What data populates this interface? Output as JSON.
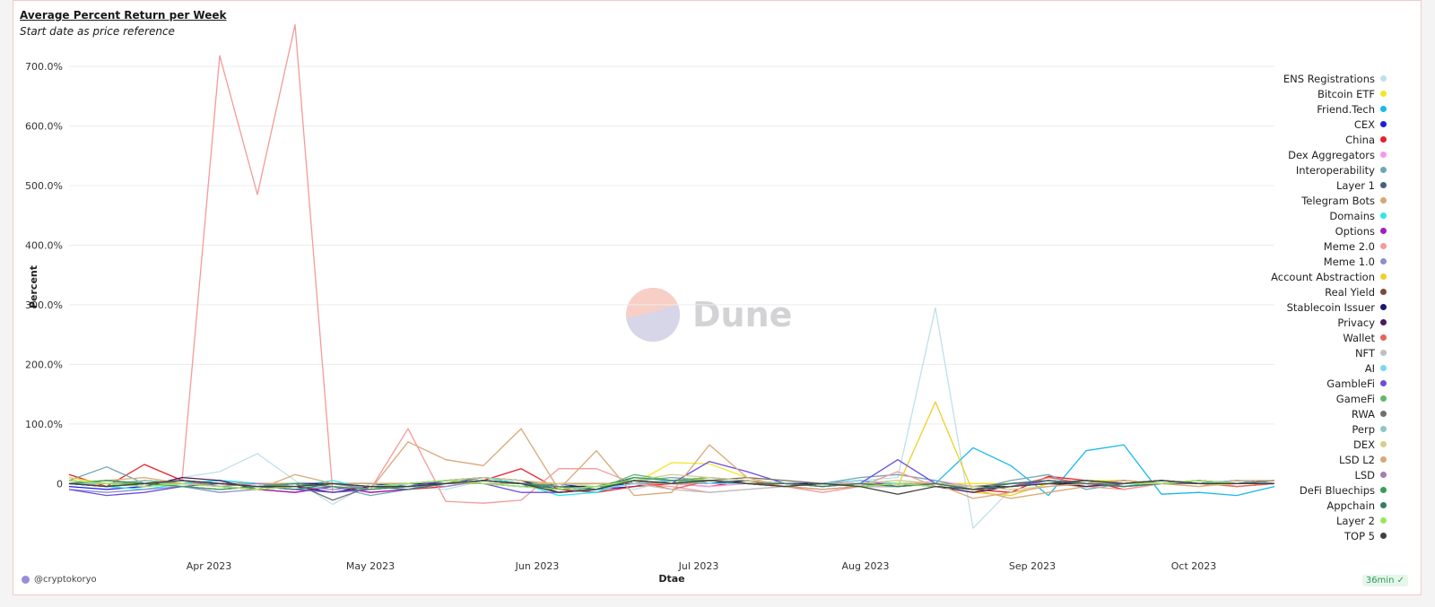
{
  "header": {
    "title": "Average Percent Return per Week",
    "subtitle": "Start date as price reference"
  },
  "watermark": {
    "text": "Dune"
  },
  "footer": {
    "user": "@cryptokoryo",
    "badge": "36min"
  },
  "chart_data": {
    "type": "line",
    "title": "Average Percent Return per Week",
    "subtitle": "Start date as price reference",
    "xlabel": "Dtae",
    "ylabel": "Percent",
    "ylim": [
      -120,
      780
    ],
    "yticks": [
      0,
      100,
      200,
      300,
      400,
      500,
      600,
      700
    ],
    "ytick_labels": [
      "0",
      "100.0%",
      "200.0%",
      "300.0%",
      "400.0%",
      "500.0%",
      "600.0%",
      "700.0%"
    ],
    "x_dates": [
      "2023-03-06",
      "2023-03-13",
      "2023-03-20",
      "2023-03-27",
      "2023-04-03",
      "2023-04-10",
      "2023-04-17",
      "2023-04-24",
      "2023-05-01",
      "2023-05-08",
      "2023-05-15",
      "2023-05-22",
      "2023-05-29",
      "2023-06-05",
      "2023-06-12",
      "2023-06-19",
      "2023-06-26",
      "2023-07-03",
      "2023-07-10",
      "2023-07-17",
      "2023-07-24",
      "2023-07-31",
      "2023-08-07",
      "2023-08-14",
      "2023-08-21",
      "2023-08-28",
      "2023-09-04",
      "2023-09-11",
      "2023-09-18",
      "2023-09-25",
      "2023-10-02",
      "2023-10-09",
      "2023-10-16"
    ],
    "xticks": [
      {
        "label": "Apr 2023",
        "date": "2023-04-01"
      },
      {
        "label": "May 2023",
        "date": "2023-05-01"
      },
      {
        "label": "Jun 2023",
        "date": "2023-06-01"
      },
      {
        "label": "Jul 2023",
        "date": "2023-07-01"
      },
      {
        "label": "Aug 2023",
        "date": "2023-08-01"
      },
      {
        "label": "Sep 2023",
        "date": "2023-09-01"
      },
      {
        "label": "Oct 2023",
        "date": "2023-10-01"
      }
    ],
    "grid": true,
    "legend_position": "right",
    "series": [
      {
        "name": "ENS Registrations",
        "color": "#bfe0e8",
        "values": [
          5,
          0,
          -5,
          10,
          20,
          50,
          5,
          -35,
          0,
          -5,
          -10,
          5,
          0,
          -5,
          0,
          -10,
          5,
          10,
          0,
          -5,
          0,
          5,
          10,
          295,
          -75,
          -10,
          -5,
          0,
          5,
          0,
          -5,
          0,
          0
        ]
      },
      {
        "name": "Bitcoin ETF",
        "color": "#f5e52a",
        "values": [
          0,
          0,
          0,
          0,
          0,
          0,
          0,
          0,
          0,
          0,
          0,
          0,
          0,
          0,
          0,
          0,
          35,
          33,
          10,
          5,
          0,
          0,
          0,
          0,
          0,
          0,
          0,
          5,
          5,
          0,
          0,
          0,
          0
        ]
      },
      {
        "name": "Friend.Tech",
        "color": "#1ab8ec",
        "values": [
          0,
          0,
          0,
          0,
          0,
          0,
          0,
          0,
          0,
          0,
          0,
          0,
          0,
          0,
          0,
          0,
          0,
          0,
          0,
          0,
          0,
          0,
          0,
          0,
          60,
          30,
          -20,
          55,
          65,
          -18,
          -15,
          -20,
          -5
        ]
      },
      {
        "name": "CEX",
        "color": "#1a20e0",
        "values": [
          -5,
          -10,
          -5,
          0,
          5,
          0,
          -5,
          0,
          0,
          -5,
          5,
          0,
          -5,
          0,
          -10,
          -5,
          5,
          0,
          5,
          0,
          -5,
          0,
          -5,
          0,
          -10,
          -5,
          0,
          5,
          0,
          0,
          5,
          0,
          5
        ]
      },
      {
        "name": "China",
        "color": "#e8202a",
        "values": [
          15,
          -5,
          32,
          5,
          -5,
          -10,
          -15,
          -5,
          -15,
          -10,
          -5,
          5,
          25,
          -10,
          -15,
          -5,
          0,
          -5,
          5,
          -5,
          0,
          0,
          0,
          0,
          -10,
          -15,
          12,
          5,
          -10,
          0,
          5,
          -5,
          0
        ]
      },
      {
        "name": "Dex Aggregators",
        "color": "#f49ae6",
        "values": [
          0,
          -5,
          0,
          5,
          -5,
          -10,
          -5,
          0,
          -10,
          -5,
          0,
          5,
          0,
          -5,
          -5,
          5,
          0,
          -5,
          0,
          0,
          -5,
          0,
          -5,
          5,
          -5,
          0,
          0,
          -5,
          5,
          0,
          0,
          5,
          0
        ]
      },
      {
        "name": "Interoperability",
        "color": "#6ea7b3",
        "values": [
          5,
          28,
          0,
          5,
          0,
          -5,
          -10,
          -5,
          -20,
          -10,
          5,
          10,
          5,
          -5,
          -15,
          5,
          10,
          5,
          0,
          -5,
          0,
          10,
          15,
          5,
          -10,
          5,
          15,
          -10,
          0,
          5,
          0,
          0,
          5
        ]
      },
      {
        "name": "Layer 1",
        "color": "#47607a",
        "values": [
          0,
          -5,
          5,
          0,
          -5,
          -10,
          -5,
          0,
          -10,
          -5,
          0,
          10,
          5,
          -10,
          -5,
          10,
          5,
          10,
          5,
          0,
          -5,
          0,
          -5,
          0,
          -10,
          -5,
          0,
          5,
          0,
          5,
          0,
          0,
          0
        ]
      },
      {
        "name": "Telegram Bots",
        "color": "#d8a770",
        "values": [
          0,
          0,
          0,
          0,
          0,
          0,
          0,
          0,
          0,
          0,
          0,
          0,
          0,
          0,
          0,
          0,
          0,
          0,
          0,
          0,
          0,
          0,
          0,
          0,
          -10,
          -25,
          -15,
          -5,
          0,
          5,
          0,
          0,
          0
        ]
      },
      {
        "name": "Domains",
        "color": "#2ae8ea",
        "values": [
          0,
          -5,
          -10,
          0,
          5,
          0,
          -5,
          5,
          -10,
          0,
          5,
          10,
          0,
          -20,
          -15,
          10,
          5,
          0,
          5,
          0,
          -5,
          0,
          5,
          0,
          -10,
          0,
          5,
          0,
          -5,
          5,
          0,
          0,
          0
        ]
      },
      {
        "name": "Options",
        "color": "#a21fbd",
        "values": [
          0,
          -5,
          0,
          5,
          -5,
          -10,
          -15,
          -5,
          -15,
          -10,
          0,
          5,
          0,
          -5,
          -10,
          5,
          0,
          5,
          0,
          -5,
          0,
          5,
          -5,
          0,
          -10,
          -5,
          5,
          0,
          -5,
          0,
          0,
          0,
          0
        ]
      },
      {
        "name": "Meme 2.0",
        "color": "#f49a9a",
        "values": [
          5,
          -5,
          0,
          5,
          718,
          485,
          770,
          -15,
          -10,
          92,
          -30,
          -33,
          -28,
          25,
          25,
          0,
          -5,
          -15,
          -10,
          -5,
          -15,
          -5,
          20,
          -5,
          -10,
          -5,
          0,
          -5,
          -10,
          0,
          5,
          -5,
          0
        ]
      },
      {
        "name": "Meme 1.0",
        "color": "#8d90cd",
        "values": [
          -10,
          -15,
          -10,
          -5,
          -15,
          -10,
          -5,
          -10,
          -5,
          0,
          -5,
          5,
          0,
          -15,
          -10,
          5,
          0,
          5,
          0,
          -5,
          0,
          -5,
          0,
          -5,
          -10,
          -5,
          0,
          5,
          -5,
          0,
          0,
          5,
          0
        ]
      },
      {
        "name": "Account Abstraction",
        "color": "#efcf2a",
        "values": [
          10,
          0,
          5,
          0,
          -5,
          -10,
          -5,
          0,
          -10,
          -5,
          0,
          5,
          0,
          -5,
          -10,
          5,
          0,
          10,
          5,
          0,
          -5,
          0,
          -5,
          137,
          -15,
          -20,
          0,
          5,
          0,
          5,
          0,
          0,
          5
        ]
      },
      {
        "name": "Real Yield",
        "color": "#7a4a3a",
        "values": [
          0,
          5,
          0,
          -5,
          -10,
          -5,
          -5,
          0,
          -10,
          -5,
          0,
          5,
          0,
          -5,
          -10,
          5,
          0,
          5,
          0,
          -5,
          0,
          -5,
          -5,
          0,
          -10,
          -5,
          0,
          -5,
          0,
          5,
          0,
          0,
          0
        ]
      },
      {
        "name": "Stablecoin Issuer",
        "color": "#1a1a6e",
        "values": [
          0,
          -5,
          0,
          5,
          0,
          -5,
          0,
          0,
          -5,
          0,
          0,
          5,
          0,
          -5,
          -5,
          0,
          5,
          0,
          5,
          0,
          0,
          -5,
          0,
          0,
          -5,
          -5,
          0,
          0,
          5,
          0,
          0,
          5,
          0
        ]
      },
      {
        "name": "Privacy",
        "color": "#4a1a5a",
        "values": [
          5,
          0,
          -5,
          10,
          5,
          -10,
          -5,
          -15,
          -5,
          0,
          5,
          10,
          5,
          -15,
          -10,
          5,
          0,
          5,
          0,
          -5,
          -10,
          -5,
          0,
          -5,
          -15,
          -5,
          5,
          -5,
          0,
          5,
          0,
          0,
          5
        ]
      },
      {
        "name": "Wallet",
        "color": "#e8645a",
        "values": [
          0,
          -5,
          5,
          0,
          -5,
          -10,
          -5,
          0,
          -10,
          -5,
          0,
          5,
          0,
          -5,
          -10,
          5,
          -10,
          5,
          0,
          -5,
          0,
          -5,
          0,
          -5,
          -10,
          -5,
          10,
          0,
          -5,
          0,
          0,
          -5,
          0
        ]
      },
      {
        "name": "NFT",
        "color": "#bfbfbf",
        "values": [
          0,
          5,
          0,
          -5,
          -10,
          -5,
          -5,
          0,
          -10,
          -5,
          0,
          5,
          0,
          -5,
          -10,
          0,
          -10,
          -15,
          -10,
          -5,
          0,
          -5,
          -5,
          0,
          -10,
          -5,
          0,
          5,
          0,
          0,
          5,
          0,
          0
        ]
      },
      {
        "name": "AI",
        "color": "#7ad7f0",
        "values": [
          0,
          -5,
          0,
          5,
          0,
          -5,
          -10,
          0,
          -5,
          -10,
          0,
          5,
          0,
          -5,
          -10,
          0,
          5,
          0,
          0,
          -5,
          0,
          5,
          0,
          0,
          -10,
          -5,
          0,
          5,
          0,
          0,
          0,
          5,
          0
        ]
      },
      {
        "name": "GambleFi",
        "color": "#6b4ee0",
        "values": [
          -10,
          -20,
          -15,
          -5,
          0,
          -5,
          -10,
          -15,
          -10,
          -5,
          5,
          0,
          -15,
          -15,
          -10,
          5,
          0,
          37,
          20,
          0,
          -5,
          0,
          40,
          0,
          -10,
          -5,
          5,
          0,
          0,
          0,
          5,
          0,
          0
        ]
      },
      {
        "name": "GameFi",
        "color": "#62b86a",
        "values": [
          0,
          -5,
          5,
          0,
          -5,
          -10,
          -5,
          0,
          -10,
          -5,
          0,
          5,
          0,
          -5,
          -10,
          15,
          5,
          10,
          5,
          0,
          -5,
          0,
          -5,
          0,
          -10,
          -5,
          0,
          5,
          -5,
          0,
          5,
          0,
          0
        ]
      },
      {
        "name": "RWA",
        "color": "#707070",
        "values": [
          0,
          5,
          0,
          -5,
          -10,
          -5,
          0,
          -28,
          -5,
          0,
          5,
          0,
          -5,
          -10,
          -5,
          5,
          0,
          5,
          10,
          5,
          0,
          -5,
          0,
          0,
          -5,
          0,
          5,
          0,
          5,
          0,
          0,
          0,
          5
        ]
      },
      {
        "name": "Perp",
        "color": "#8dc8c0",
        "values": [
          0,
          0,
          5,
          -5,
          -10,
          -5,
          0,
          -5,
          -10,
          0,
          5,
          0,
          -5,
          -10,
          -5,
          5,
          0,
          5,
          0,
          -5,
          0,
          -5,
          0,
          -5,
          -10,
          -5,
          0,
          5,
          0,
          0,
          5,
          0,
          0
        ]
      },
      {
        "name": "DEX",
        "color": "#d6cf8c",
        "values": [
          5,
          0,
          -5,
          0,
          -5,
          -10,
          -5,
          0,
          -5,
          0,
          5,
          10,
          5,
          0,
          -5,
          5,
          15,
          10,
          5,
          0,
          -5,
          0,
          5,
          0,
          -5,
          -10,
          -5,
          0,
          5,
          0,
          -5,
          0,
          0
        ]
      },
      {
        "name": "LSD L2",
        "color": "#d8a878",
        "values": [
          0,
          5,
          10,
          0,
          -5,
          -10,
          15,
          0,
          -10,
          70,
          40,
          30,
          92,
          -10,
          55,
          -20,
          -15,
          65,
          10,
          -5,
          -10,
          -5,
          0,
          0,
          -25,
          -15,
          -5,
          0,
          5,
          0,
          -5,
          5,
          5
        ]
      },
      {
        "name": "LSD",
        "color": "#a77cb3",
        "values": [
          0,
          -5,
          0,
          5,
          -5,
          0,
          -5,
          0,
          -10,
          -5,
          0,
          5,
          0,
          -5,
          -10,
          5,
          0,
          5,
          0,
          -5,
          0,
          -5,
          0,
          -5,
          -10,
          -5,
          0,
          5,
          0,
          0,
          5,
          0,
          0
        ]
      },
      {
        "name": "DeFi Bluechips",
        "color": "#3d9a5a",
        "values": [
          0,
          5,
          0,
          -5,
          -10,
          -5,
          0,
          -5,
          -10,
          -5,
          0,
          5,
          0,
          -5,
          -10,
          10,
          5,
          5,
          0,
          -5,
          0,
          -5,
          0,
          -5,
          -10,
          -5,
          0,
          5,
          0,
          5,
          0,
          0,
          0
        ]
      },
      {
        "name": "Appchain",
        "color": "#3a7a6a",
        "values": [
          0,
          -5,
          0,
          5,
          0,
          -5,
          -10,
          0,
          -5,
          -10,
          0,
          5,
          0,
          -10,
          -5,
          5,
          0,
          5,
          0,
          0,
          -5,
          0,
          -5,
          0,
          -10,
          0,
          5,
          0,
          -5,
          0,
          5,
          0,
          0
        ]
      },
      {
        "name": "Layer 2",
        "color": "#9ae85a",
        "values": [
          5,
          0,
          -5,
          0,
          -5,
          -10,
          -5,
          0,
          -5,
          0,
          5,
          0,
          -5,
          -10,
          -5,
          5,
          0,
          5,
          0,
          -5,
          0,
          -5,
          0,
          -5,
          -10,
          -5,
          0,
          5,
          0,
          0,
          5,
          0,
          0
        ]
      },
      {
        "name": "TOP 5",
        "color": "#404040",
        "values": [
          0,
          -5,
          0,
          5,
          0,
          -5,
          -5,
          0,
          -5,
          -5,
          0,
          5,
          0,
          -15,
          -10,
          5,
          0,
          5,
          0,
          -5,
          0,
          -5,
          -18,
          -5,
          -10,
          -5,
          0,
          5,
          0,
          5,
          0,
          0,
          0
        ]
      }
    ]
  }
}
